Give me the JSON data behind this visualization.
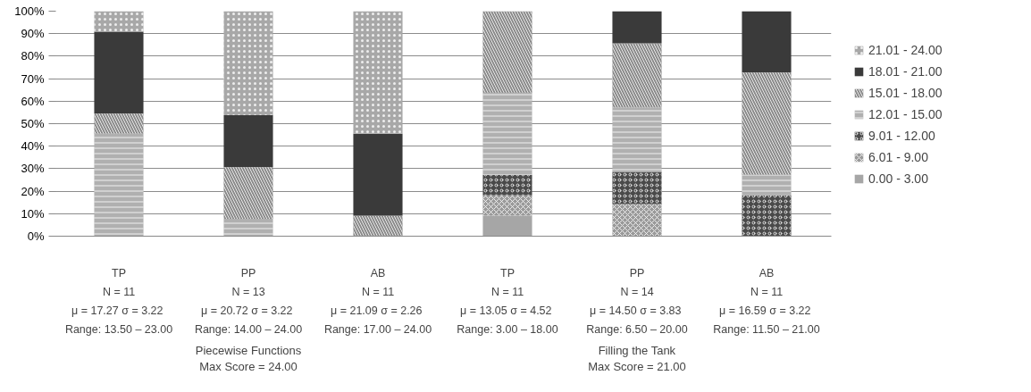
{
  "chart_data": {
    "type": "bar",
    "stacked": true,
    "categories": [
      "TP\nN = 11\nμ = 17.27  σ = 3.22\nRange: 13.50 – 23.00",
      "PP\nN = 13\nμ = 20.72  σ = 3.22\nRange: 14.00 – 24.00",
      "AB\nN = 11\nμ = 21.09  σ = 2.26\nRange: 17.00 – 24.00",
      "TP\nN = 11\nμ = 13.05  σ = 4.52\nRange: 3.00 – 18.00",
      "PP\nN = 14\nμ = 14.50  σ = 3.83\nRange: 6.50 – 20.00",
      "AB\nN = 11\nμ = 16.59  σ = 3.22\nRange: 11.50 – 21.00"
    ],
    "series": [
      {
        "name": "0.00 - 3.00",
        "color": "#a6a6a6",
        "values": [
          null,
          null,
          null,
          9.1,
          null,
          null
        ]
      },
      {
        "name": "6.01 - 9.00",
        "color": "#9a9a9a",
        "values": [
          null,
          null,
          null,
          9.1,
          14.3,
          null
        ]
      },
      {
        "name": "9.01 - 12.00",
        "color": "#4a4a4a",
        "values": [
          null,
          null,
          null,
          9.1,
          14.3,
          18.2
        ]
      },
      {
        "name": "12.01 - 15.00",
        "color": "#b0b0b0",
        "values": [
          45.5,
          7.7,
          null,
          36.4,
          28.6,
          9.1
        ]
      },
      {
        "name": "15.01 - 18.00",
        "color": "#8a8a8a",
        "values": [
          9.1,
          23.1,
          9.1,
          36.3,
          28.5,
          45.5
        ]
      },
      {
        "name": "18.01 - 21.00",
        "color": "#3a3a3a",
        "values": [
          36.3,
          23.0,
          36.4,
          null,
          14.3,
          27.2
        ]
      },
      {
        "name": "21.01 - 24.00",
        "color": "#a8a8a8",
        "values": [
          9.1,
          46.2,
          54.5,
          null,
          null,
          null
        ]
      }
    ],
    "ylim": [
      0,
      100
    ],
    "yticks": [
      {
        "value": 0,
        "label": "0%"
      },
      {
        "value": 10,
        "label": "10%"
      },
      {
        "value": 20,
        "label": "20%"
      },
      {
        "value": 30,
        "label": "30%"
      },
      {
        "value": 40,
        "label": "40%"
      },
      {
        "value": 50,
        "label": "50%"
      },
      {
        "value": 60,
        "label": "60%"
      },
      {
        "value": 70,
        "label": "70%"
      },
      {
        "value": 80,
        "label": "80%"
      },
      {
        "value": 90,
        "label": "90%"
      },
      {
        "value": 100,
        "label": "100%"
      }
    ],
    "grid": "y",
    "legend": "right",
    "annotations": [
      "Piecewise Functions\nMax Score = 24.00",
      "Filling the Tank\nMax Score = 21.00"
    ]
  }
}
